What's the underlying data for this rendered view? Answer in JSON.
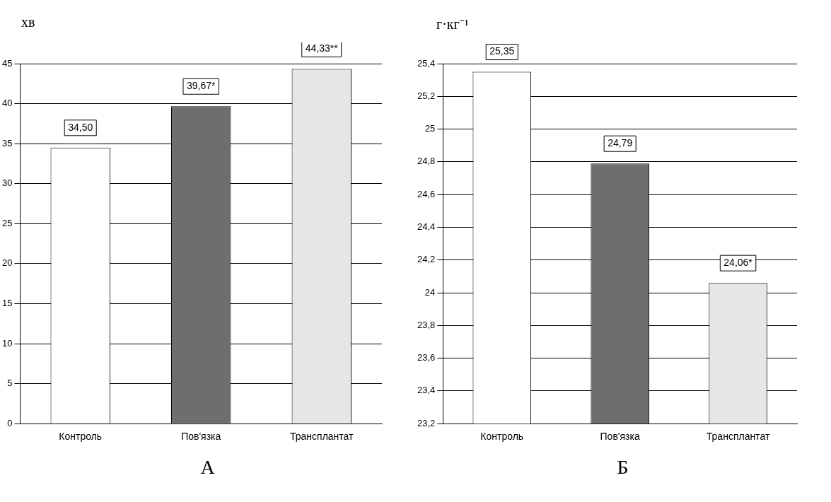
{
  "chart_data": [
    {
      "type": "bar",
      "title": "А",
      "ylabel": "хв",
      "categories": [
        "Контроль",
        "Пов'язка",
        "Трансплантат"
      ],
      "values": [
        34.5,
        39.67,
        44.33
      ],
      "value_labels": [
        "34,50",
        "39,67*",
        "44,33**"
      ],
      "colors": [
        "#ffffff",
        "#6e6e6e",
        "#e6e6e6"
      ],
      "ylim": [
        0,
        45
      ],
      "yticks": [
        0,
        5,
        10,
        15,
        20,
        25,
        30,
        35,
        40,
        45
      ],
      "grid": "y",
      "legend": false
    },
    {
      "type": "bar",
      "title": "Б",
      "ylabel": "г·кг⁻¹",
      "categories": [
        "Контроль",
        "Пов'язка",
        "Трансплантат"
      ],
      "values": [
        25.35,
        24.79,
        24.06
      ],
      "value_labels": [
        "25,35",
        "24,79",
        "24,06*"
      ],
      "colors": [
        "#ffffff",
        "#6e6e6e",
        "#e6e6e6"
      ],
      "ylim": [
        23.2,
        25.4
      ],
      "yticks": [
        {
          "value": 23.2,
          "label": "23,2"
        },
        {
          "value": 23.4,
          "label": "23,4"
        },
        {
          "value": 23.6,
          "label": "23,6"
        },
        {
          "value": 23.8,
          "label": "23,8"
        },
        {
          "value": 24,
          "label": "24"
        },
        {
          "value": 24.2,
          "label": "24,2"
        },
        {
          "value": 24.4,
          "label": "24,4"
        },
        {
          "value": 24.6,
          "label": "24,6"
        },
        {
          "value": 24.8,
          "label": "24,8"
        },
        {
          "value": 25,
          "label": "25"
        },
        {
          "value": 25.2,
          "label": "25,2"
        },
        {
          "value": 25.4,
          "label": "25,4"
        }
      ],
      "grid": "y",
      "legend": false
    }
  ]
}
